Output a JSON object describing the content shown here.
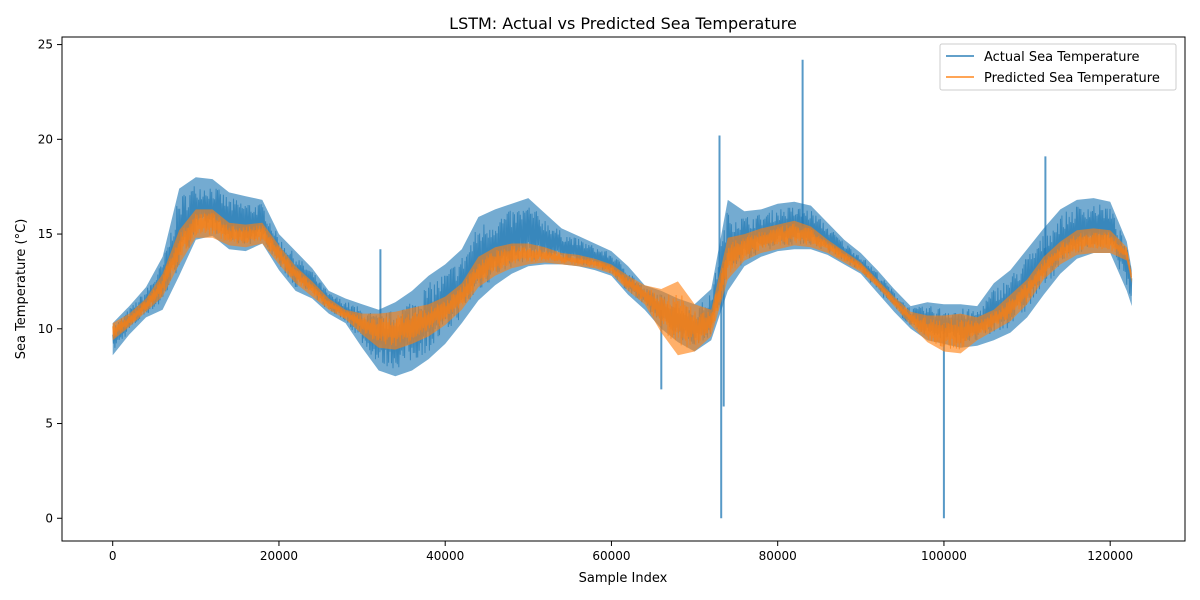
{
  "chart_data": {
    "type": "line",
    "title": "LSTM: Actual vs Predicted Sea Temperature",
    "xlabel": "Sample Index",
    "ylabel": "Sea Temperature (°C)",
    "xlim": [
      -6100,
      129000
    ],
    "ylim": [
      -1.2,
      25.4
    ],
    "xticks": [
      0,
      20000,
      40000,
      60000,
      80000,
      100000,
      120000
    ],
    "yticks": [
      0,
      5,
      10,
      15,
      20,
      25
    ],
    "grid": false,
    "legend_position": "top-right",
    "series": [
      {
        "name": "Actual Sea Temperature",
        "color": "#1f77b4",
        "x": [
          0,
          2000,
          4000,
          6000,
          8000,
          10000,
          12000,
          14000,
          16000,
          18000,
          20000,
          22000,
          24000,
          26000,
          28000,
          30000,
          32000,
          34000,
          36000,
          38000,
          40000,
          42000,
          44000,
          46000,
          48000,
          50000,
          52000,
          54000,
          56000,
          58000,
          60000,
          62000,
          64000,
          66000,
          68000,
          70000,
          72000,
          74000,
          76000,
          78000,
          80000,
          82000,
          84000,
          86000,
          88000,
          90000,
          92000,
          94000,
          96000,
          98000,
          100000,
          102000,
          104000,
          106000,
          108000,
          110000,
          112000,
          114000,
          116000,
          118000,
          120000,
          122000,
          122600
        ],
        "low": [
          8.6,
          9.7,
          10.6,
          11.0,
          12.8,
          14.7,
          14.9,
          14.2,
          14.1,
          14.5,
          13.1,
          12.0,
          11.6,
          10.8,
          10.3,
          9.0,
          7.8,
          7.5,
          7.8,
          8.4,
          9.2,
          10.3,
          11.5,
          12.3,
          12.9,
          13.3,
          13.4,
          13.4,
          13.3,
          13.1,
          12.8,
          11.8,
          11.0,
          10.0,
          9.3,
          8.8,
          9.4,
          12.0,
          13.3,
          13.8,
          14.1,
          14.2,
          14.2,
          13.9,
          13.4,
          12.9,
          11.9,
          10.9,
          10.0,
          9.4,
          9.2,
          9.0,
          9.1,
          9.4,
          9.8,
          10.6,
          11.8,
          12.9,
          13.7,
          14.0,
          14.0,
          12.0,
          11.2
        ],
        "high": [
          10.3,
          11.2,
          12.2,
          13.8,
          17.4,
          18.0,
          17.9,
          17.2,
          17.0,
          16.8,
          15.0,
          14.1,
          13.2,
          12.0,
          11.6,
          11.3,
          11.0,
          11.4,
          12.0,
          12.8,
          13.4,
          14.2,
          15.9,
          16.3,
          16.6,
          16.9,
          16.1,
          15.3,
          14.9,
          14.5,
          14.1,
          13.3,
          12.3,
          12.0,
          11.6,
          11.3,
          12.1,
          16.8,
          16.2,
          16.3,
          16.6,
          16.7,
          16.5,
          15.6,
          14.7,
          14.0,
          13.1,
          12.1,
          11.2,
          11.4,
          11.3,
          11.3,
          11.2,
          12.4,
          13.1,
          14.2,
          15.3,
          16.3,
          16.8,
          16.9,
          16.7,
          14.6,
          13.1
        ],
        "spikes": [
          {
            "x": 73000,
            "y": 20.2
          },
          {
            "x": 73200,
            "y": 0.0
          },
          {
            "x": 83000,
            "y": 24.2
          },
          {
            "x": 100000,
            "y": 0.0
          },
          {
            "x": 112200,
            "y": 19.1
          },
          {
            "x": 32200,
            "y": 14.2
          },
          {
            "x": 66000,
            "y": 6.8
          },
          {
            "x": 73500,
            "y": 5.9
          }
        ]
      },
      {
        "name": "Predicted Sea Temperature",
        "color": "#ff7f0e",
        "x": [
          0,
          2000,
          4000,
          6000,
          8000,
          10000,
          12000,
          14000,
          16000,
          18000,
          20000,
          22000,
          24000,
          26000,
          28000,
          30000,
          32000,
          34000,
          36000,
          38000,
          40000,
          42000,
          44000,
          46000,
          48000,
          50000,
          52000,
          54000,
          56000,
          58000,
          60000,
          62000,
          64000,
          66000,
          68000,
          70000,
          72000,
          74000,
          76000,
          78000,
          80000,
          82000,
          84000,
          86000,
          88000,
          90000,
          92000,
          94000,
          96000,
          98000,
          100000,
          102000,
          104000,
          106000,
          108000,
          110000,
          112000,
          114000,
          116000,
          118000,
          120000,
          122000,
          122600
        ],
        "low": [
          9.4,
          10.1,
          10.9,
          11.7,
          13.4,
          14.8,
          14.8,
          14.4,
          14.3,
          14.5,
          13.4,
          12.4,
          11.7,
          11.0,
          10.5,
          9.7,
          9.0,
          8.9,
          9.2,
          9.6,
          10.2,
          11.0,
          12.2,
          12.8,
          13.2,
          13.4,
          13.5,
          13.4,
          13.3,
          13.2,
          12.9,
          12.0,
          11.3,
          9.8,
          8.6,
          8.8,
          9.6,
          12.6,
          13.6,
          14.0,
          14.2,
          14.4,
          14.3,
          14.0,
          13.5,
          13.0,
          12.2,
          11.2,
          10.2,
          9.3,
          8.8,
          8.7,
          9.4,
          9.9,
          10.4,
          11.3,
          12.6,
          13.4,
          13.9,
          14.0,
          14.0,
          13.6,
          12.4
        ],
        "high": [
          10.3,
          10.8,
          11.6,
          12.9,
          15.2,
          16.3,
          16.3,
          15.6,
          15.5,
          15.6,
          14.4,
          13.3,
          12.5,
          11.6,
          11.0,
          10.8,
          10.8,
          10.9,
          11.1,
          11.3,
          11.7,
          12.4,
          13.8,
          14.3,
          14.5,
          14.5,
          14.3,
          14.0,
          13.9,
          13.7,
          13.4,
          12.8,
          12.3,
          12.1,
          12.5,
          11.3,
          11.0,
          14.8,
          15.0,
          15.3,
          15.5,
          15.7,
          15.4,
          14.7,
          14.1,
          13.5,
          12.6,
          11.7,
          10.9,
          10.7,
          10.7,
          10.8,
          10.6,
          11.0,
          11.8,
          12.6,
          13.8,
          14.6,
          15.2,
          15.3,
          15.2,
          14.3,
          12.9
        ]
      }
    ]
  }
}
